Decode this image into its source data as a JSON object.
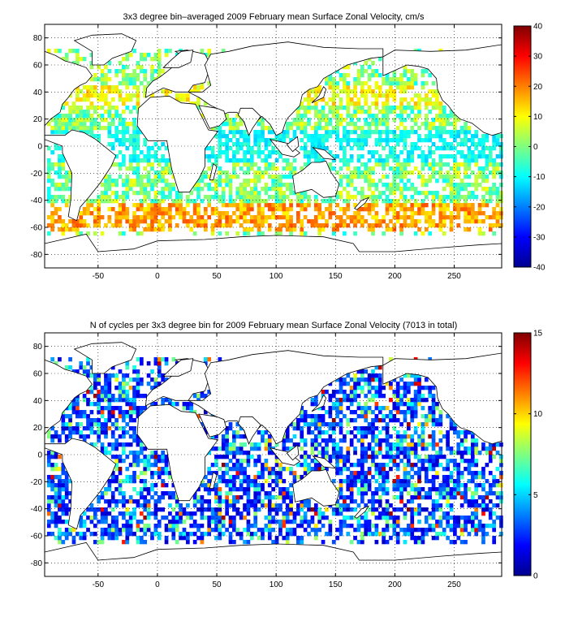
{
  "figure_background": "#ffffff",
  "chart_data": [
    {
      "type": "heatmap",
      "title": "3x3 degree bin–averaged 2009 February mean Surface Zonal Velocity, cm/s",
      "xlabel": "",
      "ylabel": "",
      "xlim": [
        -95,
        290
      ],
      "ylim": [
        -90,
        90
      ],
      "x_ticks": [
        "-50",
        "0",
        "50",
        "100",
        "150",
        "200",
        "250"
      ],
      "y_ticks": [
        "80",
        "60",
        "40",
        "20",
        "0",
        "-20",
        "-40",
        "-60",
        "-80"
      ],
      "x_tick_values": [
        -50,
        0,
        50,
        100,
        150,
        200,
        250
      ],
      "y_tick_values": [
        80,
        60,
        40,
        20,
        0,
        -20,
        -40,
        -60,
        -80
      ],
      "grid": "dotted",
      "bin_size_deg": 3,
      "colormap": "jet",
      "colorbar": {
        "min": -40,
        "max": 40,
        "ticks": [
          "40",
          "30",
          "20",
          "10",
          "0",
          "-10",
          "-20",
          "-30",
          "-40"
        ],
        "tick_values": [
          40,
          30,
          20,
          10,
          0,
          -10,
          -20,
          -30,
          -40
        ]
      }
    },
    {
      "type": "heatmap",
      "title": "N of cycles per 3x3 degree bin for 2009 February mean Surface Zonal Velocity (7013 in total)",
      "xlabel": "",
      "ylabel": "",
      "xlim": [
        -95,
        290
      ],
      "ylim": [
        -90,
        90
      ],
      "x_ticks": [
        "-50",
        "0",
        "50",
        "100",
        "150",
        "200",
        "250"
      ],
      "y_ticks": [
        "80",
        "60",
        "40",
        "20",
        "0",
        "-20",
        "-40",
        "-60",
        "-80"
      ],
      "x_tick_values": [
        -50,
        0,
        50,
        100,
        150,
        200,
        250
      ],
      "y_tick_values": [
        80,
        60,
        40,
        20,
        0,
        -20,
        -40,
        -60,
        -80
      ],
      "grid": "dotted",
      "bin_size_deg": 3,
      "colormap": "jet",
      "colorbar": {
        "min": 0,
        "max": 15,
        "ticks": [
          "15",
          "10",
          "5",
          "0"
        ],
        "tick_values": [
          15,
          10,
          5,
          0
        ]
      }
    }
  ]
}
